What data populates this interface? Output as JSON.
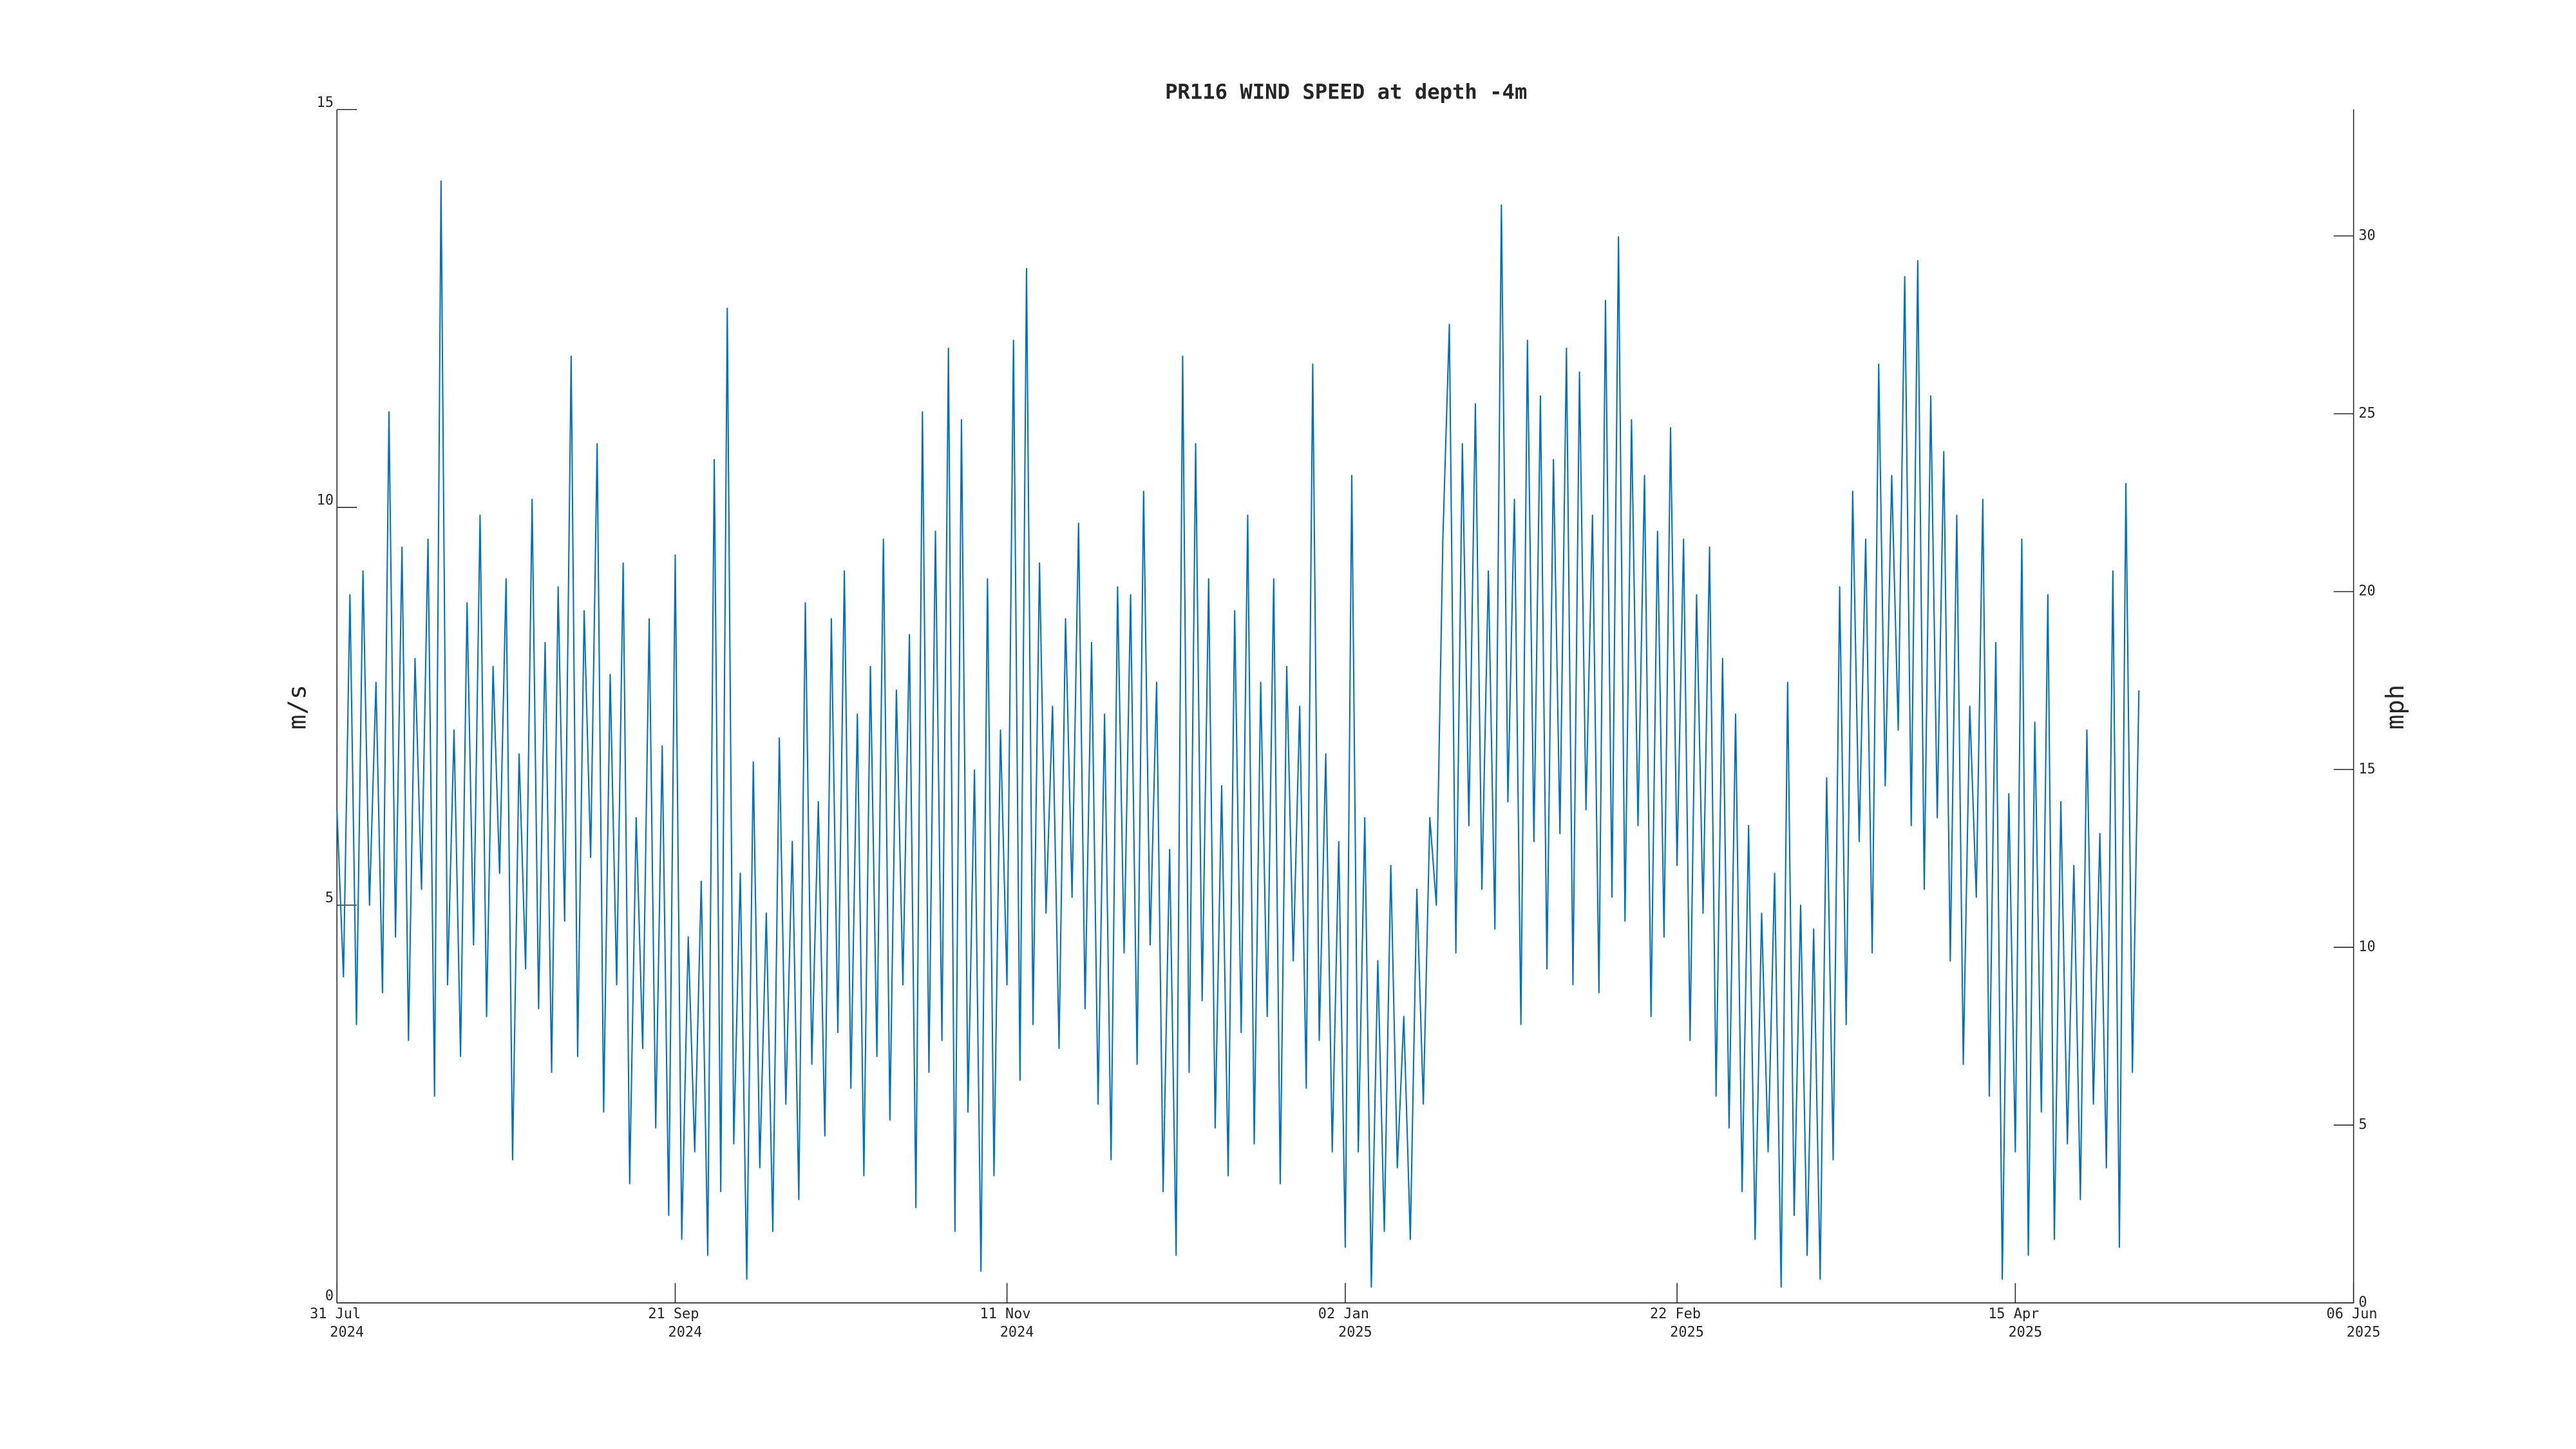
{
  "chart_data": {
    "type": "line",
    "title": "PR116 WIND SPEED at depth -4m",
    "y_label": "m/s",
    "y2_label": "mph",
    "color": "#0072bd",
    "xlim": [
      "2024-07-31",
      "2025-06-06"
    ],
    "xticks": [
      {
        "value": "2024-07-31",
        "label": [
          "31 Jul",
          "2024"
        ]
      },
      {
        "value": "2024-09-21",
        "label": [
          "21 Sep",
          "2024"
        ]
      },
      {
        "value": "2024-11-11",
        "label": [
          "11 Nov",
          "2024"
        ]
      },
      {
        "value": "2025-01-02",
        "label": [
          "02 Jan",
          "2025"
        ]
      },
      {
        "value": "2025-02-22",
        "label": [
          "22 Feb",
          "2025"
        ]
      },
      {
        "value": "2025-04-15",
        "label": [
          "15 Apr",
          "2025"
        ]
      },
      {
        "value": "2025-06-06",
        "label": [
          "06 Jun",
          "2025"
        ]
      }
    ],
    "ylim": [
      0,
      15
    ],
    "yticks": [
      0,
      5,
      10,
      15
    ],
    "y2lim": [
      0,
      33.554
    ],
    "y2ticks": [
      0,
      5,
      10,
      15,
      20,
      25,
      30
    ],
    "x": [
      "2024-07-31",
      "2024-08-01",
      "2024-08-02",
      "2024-08-03",
      "2024-08-04",
      "2024-08-05",
      "2024-08-06",
      "2024-08-07",
      "2024-08-08",
      "2024-08-09",
      "2024-08-10",
      "2024-08-11",
      "2024-08-12",
      "2024-08-13",
      "2024-08-14",
      "2024-08-15",
      "2024-08-16",
      "2024-08-17",
      "2024-08-18",
      "2024-08-19",
      "2024-08-20",
      "2024-08-21",
      "2024-08-22",
      "2024-08-23",
      "2024-08-24",
      "2024-08-25",
      "2024-08-26",
      "2024-08-27",
      "2024-08-28",
      "2024-08-29",
      "2024-08-30",
      "2024-08-31",
      "2024-09-01",
      "2024-09-02",
      "2024-09-03",
      "2024-09-04",
      "2024-09-05",
      "2024-09-06",
      "2024-09-07",
      "2024-09-08",
      "2024-09-09",
      "2024-09-10",
      "2024-09-11",
      "2024-09-12",
      "2024-09-13",
      "2024-09-14",
      "2024-09-15",
      "2024-09-16",
      "2024-09-17",
      "2024-09-18",
      "2024-09-19",
      "2024-09-20",
      "2024-09-21",
      "2024-09-22",
      "2024-09-23",
      "2024-09-24",
      "2024-09-25",
      "2024-09-26",
      "2024-09-27",
      "2024-09-28",
      "2024-09-29",
      "2024-09-30",
      "2024-10-01",
      "2024-10-02",
      "2024-10-03",
      "2024-10-04",
      "2024-10-05",
      "2024-10-06",
      "2024-10-07",
      "2024-10-08",
      "2024-10-09",
      "2024-10-10",
      "2024-10-11",
      "2024-10-12",
      "2024-10-13",
      "2024-10-14",
      "2024-10-15",
      "2024-10-16",
      "2024-10-17",
      "2024-10-18",
      "2024-10-19",
      "2024-10-20",
      "2024-10-21",
      "2024-10-22",
      "2024-10-23",
      "2024-10-24",
      "2024-10-25",
      "2024-10-26",
      "2024-10-27",
      "2024-10-28",
      "2024-10-29",
      "2024-10-30",
      "2024-10-31",
      "2024-11-01",
      "2024-11-02",
      "2024-11-03",
      "2024-11-04",
      "2024-11-05",
      "2024-11-06",
      "2024-11-07",
      "2024-11-08",
      "2024-11-09",
      "2024-11-10",
      "2024-11-11",
      "2024-11-12",
      "2024-11-13",
      "2024-11-14",
      "2024-11-15",
      "2024-11-16",
      "2024-11-17",
      "2024-11-18",
      "2024-11-19",
      "2024-11-20",
      "2024-11-21",
      "2024-11-22",
      "2024-11-23",
      "2024-11-24",
      "2024-11-25",
      "2024-11-26",
      "2024-11-27",
      "2024-11-28",
      "2024-11-29",
      "2024-11-30",
      "2024-12-01",
      "2024-12-02",
      "2024-12-03",
      "2024-12-04",
      "2024-12-05",
      "2024-12-06",
      "2024-12-07",
      "2024-12-08",
      "2024-12-09",
      "2024-12-10",
      "2024-12-11",
      "2024-12-12",
      "2024-12-13",
      "2024-12-14",
      "2024-12-15",
      "2024-12-16",
      "2024-12-17",
      "2024-12-18",
      "2024-12-19",
      "2024-12-20",
      "2024-12-21",
      "2024-12-22",
      "2024-12-23",
      "2024-12-24",
      "2024-12-25",
      "2024-12-26",
      "2024-12-27",
      "2024-12-28",
      "2024-12-29",
      "2024-12-30",
      "2024-12-31",
      "2025-01-01",
      "2025-01-02",
      "2025-01-03",
      "2025-01-04",
      "2025-01-05",
      "2025-01-06",
      "2025-01-07",
      "2025-01-08",
      "2025-01-09",
      "2025-01-10",
      "2025-01-11",
      "2025-01-12",
      "2025-01-13",
      "2025-01-14",
      "2025-01-15",
      "2025-01-16",
      "2025-01-17",
      "2025-01-18",
      "2025-01-19",
      "2025-01-20",
      "2025-01-21",
      "2025-01-22",
      "2025-01-23",
      "2025-01-24",
      "2025-01-25",
      "2025-01-26",
      "2025-01-27",
      "2025-01-28",
      "2025-01-29",
      "2025-01-30",
      "2025-01-31",
      "2025-02-01",
      "2025-02-02",
      "2025-02-03",
      "2025-02-04",
      "2025-02-05",
      "2025-02-06",
      "2025-02-07",
      "2025-02-08",
      "2025-02-09",
      "2025-02-10",
      "2025-02-11",
      "2025-02-12",
      "2025-02-13",
      "2025-02-14",
      "2025-02-15",
      "2025-02-16",
      "2025-02-17",
      "2025-02-18",
      "2025-02-19",
      "2025-02-20",
      "2025-02-21",
      "2025-02-22",
      "2025-02-23",
      "2025-02-24",
      "2025-02-25",
      "2025-02-26",
      "2025-02-27",
      "2025-02-28",
      "2025-03-01",
      "2025-03-02",
      "2025-03-03",
      "2025-03-04",
      "2025-03-05",
      "2025-03-06",
      "2025-03-07",
      "2025-03-08",
      "2025-03-09",
      "2025-03-10",
      "2025-03-11",
      "2025-03-12",
      "2025-03-13",
      "2025-03-14",
      "2025-03-15",
      "2025-03-16",
      "2025-03-17",
      "2025-03-18",
      "2025-03-19",
      "2025-03-20",
      "2025-03-21",
      "2025-03-22",
      "2025-03-23",
      "2025-03-24",
      "2025-03-25",
      "2025-03-26",
      "2025-03-27",
      "2025-03-28",
      "2025-03-29",
      "2025-03-30",
      "2025-03-31",
      "2025-04-01",
      "2025-04-02",
      "2025-04-03",
      "2025-04-04",
      "2025-04-05",
      "2025-04-06",
      "2025-04-07",
      "2025-04-08",
      "2025-04-09",
      "2025-04-10",
      "2025-04-11",
      "2025-04-12",
      "2025-04-13",
      "2025-04-14",
      "2025-04-15",
      "2025-04-16",
      "2025-04-17",
      "2025-04-18",
      "2025-04-19",
      "2025-04-20",
      "2025-04-21",
      "2025-04-22",
      "2025-04-23",
      "2025-04-24",
      "2025-04-25",
      "2025-04-26",
      "2025-04-27",
      "2025-04-28",
      "2025-04-29",
      "2025-04-30",
      "2025-05-01",
      "2025-05-02",
      "2025-05-03",
      "2025-05-04"
    ],
    "values": [
      6.2,
      4.1,
      8.9,
      3.5,
      9.2,
      5.0,
      7.8,
      3.9,
      11.2,
      4.6,
      9.5,
      3.3,
      8.1,
      5.2,
      9.6,
      2.6,
      14.1,
      4.0,
      7.2,
      3.1,
      8.8,
      4.5,
      9.9,
      3.6,
      8.0,
      5.4,
      9.1,
      1.8,
      6.9,
      4.2,
      10.1,
      3.7,
      8.3,
      2.9,
      9.0,
      4.8,
      11.9,
      3.1,
      8.7,
      5.6,
      10.8,
      2.4,
      7.9,
      4.0,
      9.3,
      1.5,
      6.1,
      3.2,
      8.6,
      2.2,
      7.0,
      1.1,
      9.4,
      0.8,
      4.6,
      1.9,
      5.3,
      0.6,
      10.6,
      1.4,
      12.5,
      2.0,
      5.4,
      0.3,
      6.8,
      1.7,
      4.9,
      0.9,
      7.1,
      2.5,
      5.8,
      1.3,
      8.8,
      3.0,
      6.3,
      2.1,
      8.6,
      3.4,
      9.2,
      2.7,
      7.4,
      1.6,
      8.0,
      3.1,
      9.6,
      2.3,
      7.7,
      4.0,
      8.4,
      1.2,
      11.2,
      2.9,
      9.7,
      3.3,
      12.0,
      0.9,
      11.1,
      2.4,
      6.7,
      0.4,
      9.1,
      1.6,
      7.2,
      4.0,
      12.1,
      2.8,
      13.0,
      3.5,
      9.3,
      4.9,
      7.5,
      3.2,
      8.6,
      5.1,
      9.8,
      3.7,
      8.3,
      2.5,
      7.4,
      1.8,
      9.0,
      4.4,
      8.9,
      3.0,
      10.2,
      4.5,
      7.8,
      1.4,
      5.7,
      0.6,
      11.9,
      2.9,
      10.8,
      3.8,
      9.1,
      2.2,
      6.5,
      1.6,
      8.7,
      3.4,
      9.9,
      2.0,
      7.8,
      3.6,
      9.1,
      1.5,
      8.0,
      4.3,
      7.5,
      2.7,
      11.8,
      3.3,
      6.9,
      1.9,
      5.8,
      0.7,
      10.4,
      1.9,
      6.1,
      0.2,
      4.3,
      0.9,
      5.5,
      1.7,
      3.6,
      0.8,
      5.2,
      2.5,
      6.1,
      5.0,
      9.6,
      12.3,
      4.4,
      10.8,
      6.0,
      11.3,
      5.2,
      9.2,
      4.7,
      13.8,
      6.3,
      10.1,
      3.5,
      12.1,
      5.8,
      11.4,
      4.2,
      10.6,
      5.9,
      12.0,
      4.0,
      11.7,
      6.2,
      9.9,
      3.9,
      12.6,
      5.1,
      13.4,
      4.8,
      11.1,
      6.0,
      10.4,
      3.6,
      9.7,
      4.6,
      11.0,
      5.5,
      9.6,
      3.3,
      8.9,
      4.9,
      9.5,
      2.6,
      8.1,
      2.2,
      7.4,
      1.4,
      6.0,
      0.8,
      4.9,
      1.9,
      5.4,
      0.2,
      7.8,
      1.1,
      5.0,
      0.6,
      4.7,
      0.3,
      6.6,
      1.8,
      9.0,
      3.5,
      10.2,
      5.8,
      9.6,
      4.4,
      11.8,
      6.5,
      10.4,
      7.2,
      12.9,
      6.0,
      13.1,
      5.2,
      11.4,
      6.1,
      10.7,
      4.3,
      9.9,
      3.0,
      7.5,
      5.1,
      10.1,
      2.6,
      8.3,
      0.3,
      6.4,
      1.9,
      9.6,
      0.6,
      7.3,
      2.4,
      8.9,
      0.8,
      6.3,
      2.0,
      5.5,
      1.3,
      7.2,
      2.5,
      5.9,
      1.7,
      9.2,
      0.7,
      10.3,
      2.9,
      7.7
    ]
  }
}
